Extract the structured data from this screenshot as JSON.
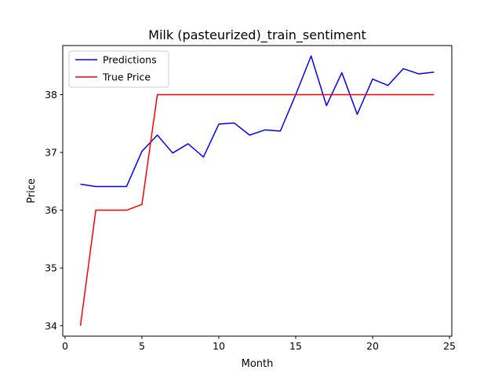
{
  "chart_data": {
    "type": "line",
    "title": "Milk (pasteurized)_train_sentiment",
    "xlabel": "Month",
    "ylabel": "Price",
    "xlim": [
      -0.15,
      25.15
    ],
    "ylim": [
      33.82,
      38.85
    ],
    "xticks": [
      0,
      5,
      10,
      15,
      20,
      25
    ],
    "yticks": [
      34,
      35,
      36,
      37,
      38
    ],
    "grid": false,
    "legend_position": "top-left",
    "x": [
      1,
      2,
      3,
      4,
      5,
      6,
      7,
      8,
      9,
      10,
      11,
      12,
      13,
      14,
      15,
      16,
      17,
      18,
      19,
      20,
      21,
      22,
      23,
      24
    ],
    "series": [
      {
        "name": "Predictions",
        "color": "#0000ff",
        "values": [
          36.45,
          36.41,
          36.41,
          36.41,
          37.02,
          37.3,
          36.99,
          37.15,
          36.92,
          37.49,
          37.51,
          37.3,
          37.39,
          37.37,
          38.0,
          38.67,
          37.81,
          38.38,
          37.66,
          38.27,
          38.16,
          38.45,
          38.36,
          38.39
        ]
      },
      {
        "name": "True Price",
        "color": "#ff0000",
        "values": [
          34.0,
          36.0,
          36.0,
          36.0,
          36.1,
          38.0,
          38.0,
          38.0,
          38.0,
          38.0,
          38.0,
          38.0,
          38.0,
          38.0,
          38.0,
          38.0,
          38.0,
          38.0,
          38.0,
          38.0,
          38.0,
          38.0,
          38.0,
          38.0
        ]
      }
    ]
  }
}
